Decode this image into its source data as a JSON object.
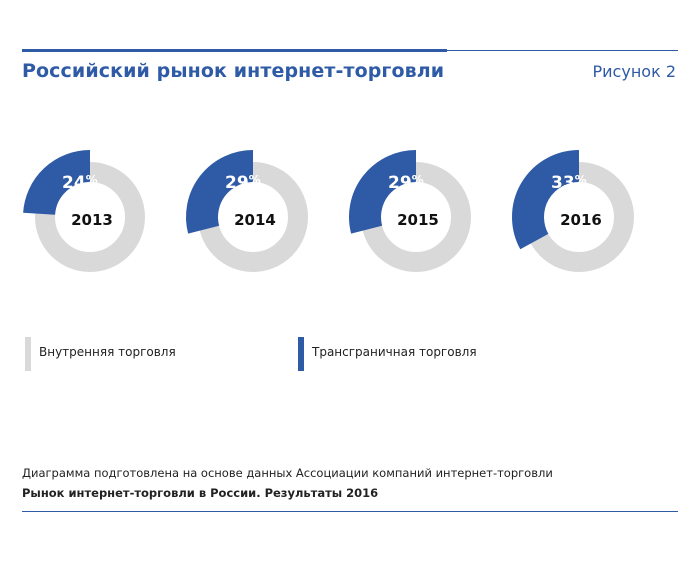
{
  "header": {
    "title": "Российский рынок интернет-торговли",
    "figure_label": "Рисунок 2"
  },
  "chart_data": {
    "type": "pie",
    "style": "donut",
    "unit": "%",
    "series": [
      {
        "name": "Внутренняя торговля",
        "color": "#d9d9d9"
      },
      {
        "name": "Трансграничная торговля",
        "color": "#2e5aa6"
      }
    ],
    "charts": [
      {
        "year": "2013",
        "cross_border": 24,
        "domestic": 76
      },
      {
        "year": "2014",
        "cross_border": 29,
        "domestic": 71
      },
      {
        "year": "2015",
        "cross_border": 29,
        "domestic": 71
      },
      {
        "year": "2016",
        "cross_border": 33,
        "domestic": 67
      }
    ]
  },
  "legend": {
    "domestic_label": "Внутренняя торговля",
    "cross_border_label": "Трансграничная торговля"
  },
  "footer": {
    "note": "Диаграмма подготовлена на основе данных Ассоциации компаний интернет-торговли",
    "source": "Рынок интернет-торговли в России. Результаты 2016"
  }
}
